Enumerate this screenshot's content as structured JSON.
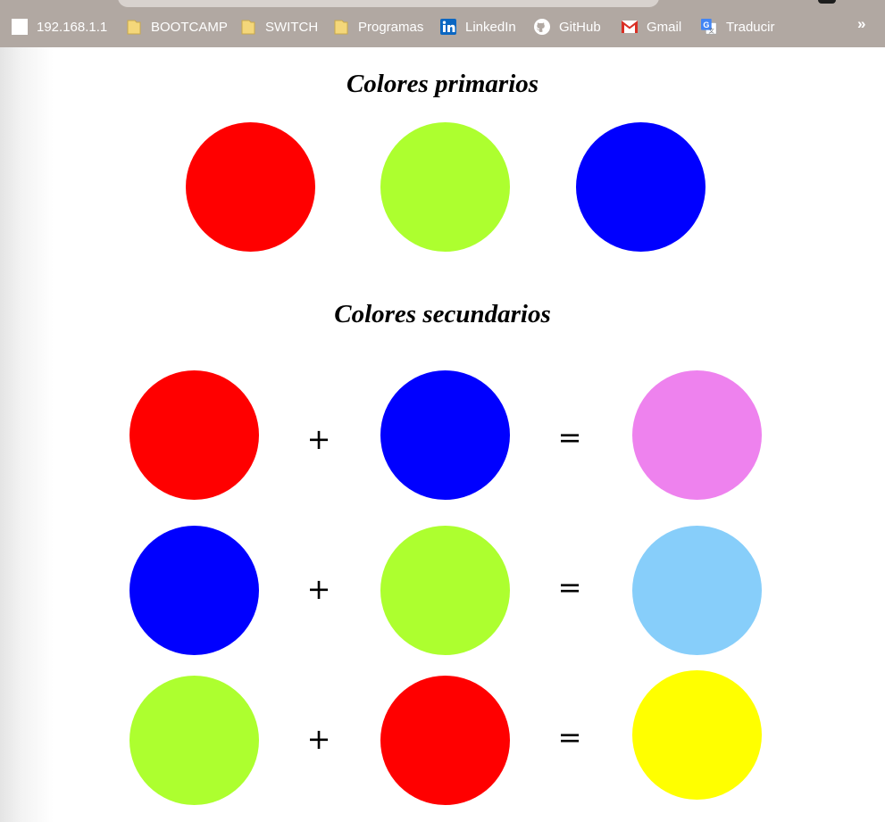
{
  "bookmarks": {
    "items": [
      {
        "label": "192.168.1.1",
        "icon": "blank-page-icon"
      },
      {
        "label": "BOOTCAMP",
        "icon": "folder-icon"
      },
      {
        "label": "SWITCH",
        "icon": "folder-icon"
      },
      {
        "label": "Programas",
        "icon": "folder-icon"
      },
      {
        "label": "LinkedIn",
        "icon": "linkedin-icon"
      },
      {
        "label": "GitHub",
        "icon": "github-icon"
      },
      {
        "label": "Gmail",
        "icon": "gmail-icon"
      },
      {
        "label": "Traducir",
        "icon": "google-translate-icon"
      }
    ],
    "more_label": "»"
  },
  "page": {
    "primary_title": "Colores primarios",
    "secondary_title": "Colores secundarios",
    "plus": "+",
    "equals": "="
  },
  "colors": {
    "red": "#ff0000",
    "green": "#adff2f",
    "blue": "#0000ff",
    "violet": "#ee82ee",
    "lightskyblue": "#87cefa",
    "yellow": "#ffff00"
  }
}
